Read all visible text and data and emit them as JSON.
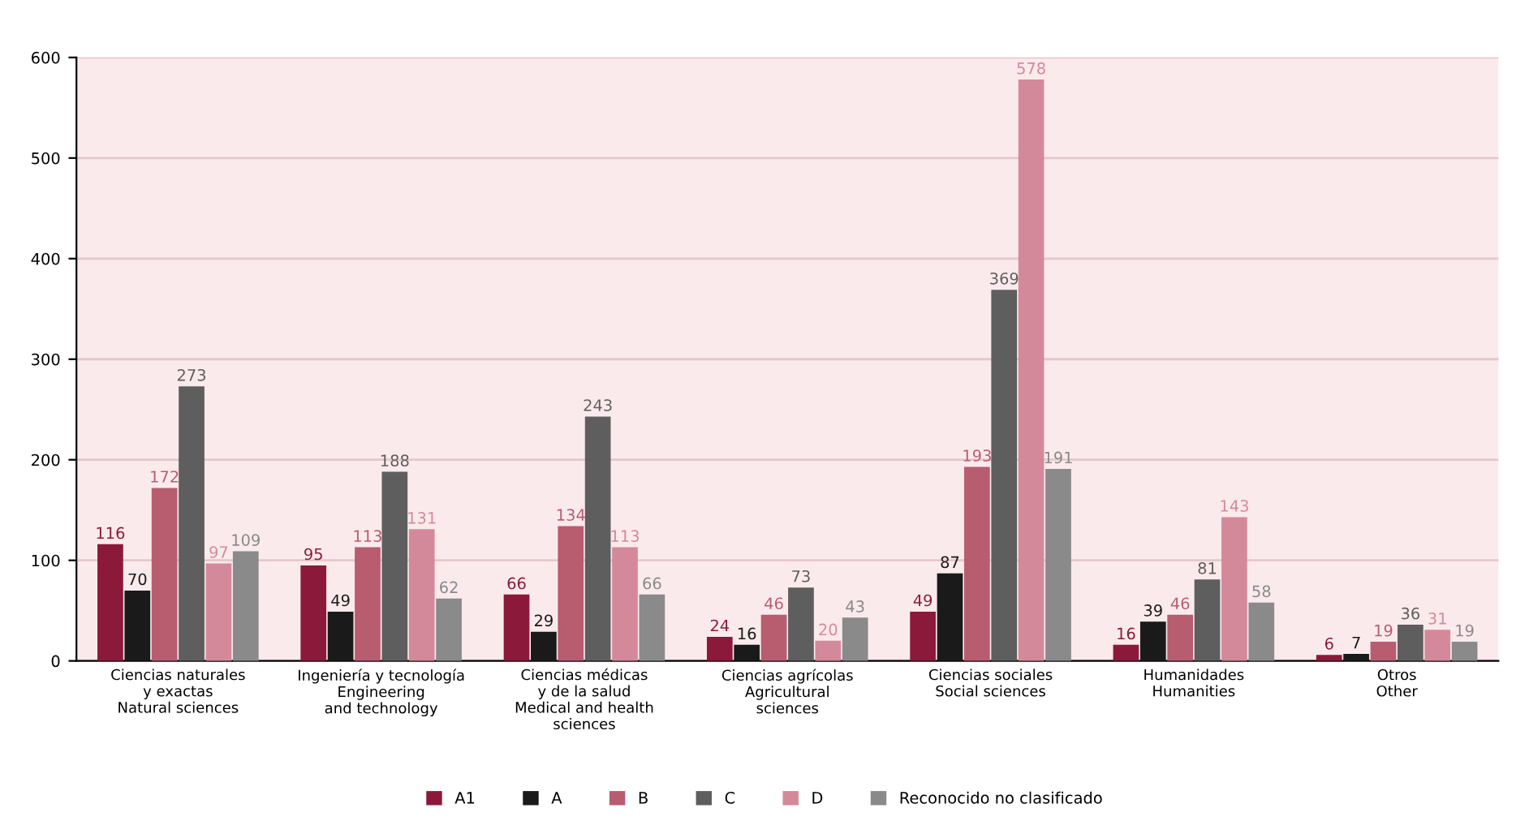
{
  "chart_data": {
    "type": "bar",
    "categories": [
      "Ciencias naturales\ny exactas\nNatural sciences",
      "Ingeniería y tecnología\nEngineering\nand technology",
      "Ciencias médicas\ny de la salud\nMedical and health\nsciences",
      "Ciencias agrícolas\nAgricultural\nsciences",
      "Ciencias sociales\nSocial sciences",
      "Humanidades\nHumanities",
      "Otros\nOther"
    ],
    "series": [
      {
        "name": "A1",
        "color": "#8b1a3a",
        "values": [
          116,
          95,
          66,
          24,
          49,
          16,
          6
        ]
      },
      {
        "name": "A",
        "color": "#1a1a1a",
        "values": [
          70,
          49,
          29,
          16,
          87,
          39,
          7
        ]
      },
      {
        "name": "B",
        "color": "#b85c70",
        "values": [
          172,
          113,
          134,
          46,
          193,
          46,
          19
        ]
      },
      {
        "name": "C",
        "color": "#5e5e5e",
        "values": [
          273,
          188,
          243,
          73,
          369,
          81,
          36
        ]
      },
      {
        "name": "D",
        "color": "#d4899a",
        "values": [
          97,
          131,
          113,
          20,
          578,
          143,
          31
        ]
      },
      {
        "name": "Reconocido no clasificado",
        "color": "#8a8a8a",
        "values": [
          109,
          62,
          66,
          43,
          191,
          58,
          19
        ]
      }
    ],
    "ylim": [
      0,
      600
    ],
    "yticks": [
      0,
      100,
      200,
      300,
      400,
      500,
      600
    ],
    "grid": "y",
    "legend": "bottom",
    "data_labels": true
  }
}
